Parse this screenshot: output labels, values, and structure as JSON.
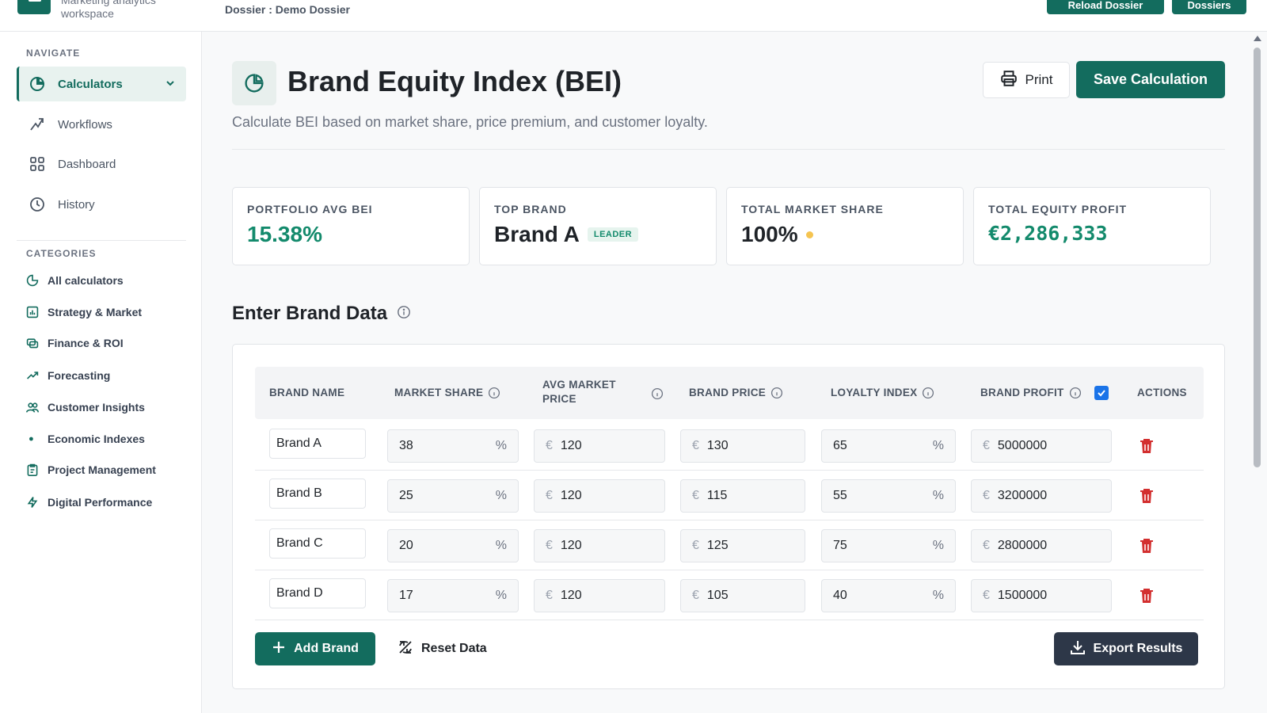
{
  "topbar": {
    "brand_subtitle": "Marketing analytics workspace",
    "dossier": "Dossier : Demo Dossier",
    "button_one": "Reload Dossier",
    "button_two": "Dossiers"
  },
  "sidebar": {
    "navigate_heading": "NAVIGATE",
    "nav": [
      {
        "label": "Calculators",
        "icon": "pie-chart-icon",
        "active": true
      },
      {
        "label": "Workflows",
        "icon": "workflow-icon"
      },
      {
        "label": "Dashboard",
        "icon": "grid-icon"
      },
      {
        "label": "History",
        "icon": "clock-icon"
      }
    ],
    "categories_heading": "CATEGORIES",
    "categories": [
      {
        "label": "All calculators",
        "icon": "pie-chart-icon"
      },
      {
        "label": "Strategy & Market",
        "icon": "bar-chart-icon"
      },
      {
        "label": "Finance & ROI",
        "icon": "coins-icon"
      },
      {
        "label": "Forecasting",
        "icon": "trend-up-icon"
      },
      {
        "label": "Customer Insights",
        "icon": "users-icon"
      },
      {
        "label": "Economic Indexes",
        "icon": "dot-icon"
      },
      {
        "label": "Project Management",
        "icon": "clipboard-icon"
      },
      {
        "label": "Digital Performance",
        "icon": "bolt-icon"
      }
    ]
  },
  "header": {
    "title": "Brand Equity Index (BEI)",
    "subtitle": "Calculate BEI based on market share, price premium, and customer loyalty.",
    "print_label": "Print",
    "save_label": "Save Calculation"
  },
  "stats": [
    {
      "label": "PORTFOLIO AVG BEI",
      "value": "15.38%"
    },
    {
      "label": "TOP BRAND",
      "value": "Brand A",
      "badge": "LEADER"
    },
    {
      "label": "TOTAL MARKET SHARE",
      "value": "100%"
    },
    {
      "label": "TOTAL EQUITY PROFIT",
      "value": "€2,286,333"
    }
  ],
  "section": {
    "title": "Enter Brand Data"
  },
  "table": {
    "columns": [
      "BRAND NAME",
      "MARKET SHARE",
      "AVG MARKET PRICE",
      "BRAND PRICE",
      "LOYALTY INDEX",
      "BRAND PROFIT",
      "ACTIONS"
    ],
    "currency": "€",
    "percent": "%",
    "rows": [
      {
        "name": "Brand A",
        "share": "38",
        "avg_price": "120",
        "brand_price": "130",
        "loyalty": "65",
        "profit": "5000000"
      },
      {
        "name": "Brand B",
        "share": "25",
        "avg_price": "120",
        "brand_price": "115",
        "loyalty": "55",
        "profit": "3200000"
      },
      {
        "name": "Brand C",
        "share": "20",
        "avg_price": "120",
        "brand_price": "125",
        "loyalty": "75",
        "profit": "2800000"
      },
      {
        "name": "Brand D",
        "share": "17",
        "avg_price": "120",
        "brand_price": "105",
        "loyalty": "40",
        "profit": "1500000"
      }
    ]
  },
  "actions": {
    "add_label": "Add Brand",
    "reset_label": "Reset Data",
    "export_label": "Export Results"
  },
  "colors": {
    "accent": "#136c5e",
    "positive": "#138a6c",
    "danger": "#d32f2f",
    "export": "#2d3748"
  }
}
